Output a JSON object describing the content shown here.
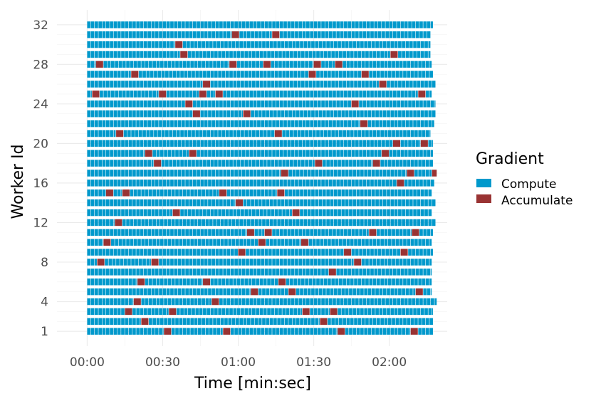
{
  "chart_data": {
    "type": "gantt",
    "xlabel": "Time [min:sec]",
    "ylabel": "Worker Id",
    "legend_title": "Gradient",
    "legend_position": "right",
    "grid": true,
    "xlim_seconds": [
      -12,
      143
    ],
    "x_ticks": [
      {
        "value": 0,
        "label": "00:00"
      },
      {
        "value": 30,
        "label": "00:30"
      },
      {
        "value": 60,
        "label": "01:00"
      },
      {
        "value": 90,
        "label": "01:30"
      },
      {
        "value": 120,
        "label": "02:00"
      }
    ],
    "ylim": [
      -0.5,
      33.5
    ],
    "y_ticks": [
      {
        "value": 1,
        "label": "1"
      },
      {
        "value": 4,
        "label": "4"
      },
      {
        "value": 8,
        "label": "8"
      },
      {
        "value": 12,
        "label": "12"
      },
      {
        "value": 16,
        "label": "16"
      },
      {
        "value": 20,
        "label": "20"
      },
      {
        "value": 24,
        "label": "24"
      },
      {
        "value": 28,
        "label": "28"
      },
      {
        "value": 32,
        "label": "32"
      }
    ],
    "series": [
      {
        "name": "Compute",
        "color": "#0099cc"
      },
      {
        "name": "Accumulate",
        "color": "#993333"
      }
    ],
    "workers": [
      {
        "id": 1,
        "end": 137.5,
        "accumulate": [
          30.5,
          54,
          99.5,
          128.5
        ]
      },
      {
        "id": 2,
        "end": 137.5,
        "accumulate": [
          21.5,
          92.5
        ]
      },
      {
        "id": 3,
        "end": 137.5,
        "accumulate": [
          15,
          32.5,
          85.5,
          96.5
        ]
      },
      {
        "id": 4,
        "end": 139,
        "accumulate": [
          18.5,
          49.5
        ]
      },
      {
        "id": 5,
        "end": 137,
        "accumulate": [
          65,
          80,
          130.5
        ]
      },
      {
        "id": 6,
        "end": 137,
        "accumulate": [
          20,
          46,
          76
        ]
      },
      {
        "id": 7,
        "end": 137,
        "accumulate": [
          96
        ]
      },
      {
        "id": 8,
        "end": 137,
        "accumulate": [
          4,
          25.5,
          106
        ]
      },
      {
        "id": 9,
        "end": 137.5,
        "accumulate": [
          60,
          102,
          124.5
        ]
      },
      {
        "id": 10,
        "end": 137,
        "accumulate": [
          6.5,
          68,
          85
        ]
      },
      {
        "id": 11,
        "end": 137.5,
        "accumulate": [
          63.5,
          70.5,
          112,
          129
        ]
      },
      {
        "id": 12,
        "end": 138.5,
        "accumulate": [
          11
        ]
      },
      {
        "id": 13,
        "end": 137,
        "accumulate": [
          34,
          81.5
        ]
      },
      {
        "id": 14,
        "end": 138.5,
        "accumulate": [
          59
        ]
      },
      {
        "id": 15,
        "end": 137,
        "accumulate": [
          7.5,
          14,
          52.5,
          75.5
        ]
      },
      {
        "id": 16,
        "end": 138,
        "accumulate": [
          123
        ]
      },
      {
        "id": 17,
        "end": 139,
        "accumulate": [
          77,
          127,
          137
        ]
      },
      {
        "id": 18,
        "end": 137.5,
        "accumulate": [
          26.5,
          90.5,
          113.5
        ]
      },
      {
        "id": 19,
        "end": 137.5,
        "accumulate": [
          23,
          40.5,
          117
        ]
      },
      {
        "id": 20,
        "end": 137.5,
        "accumulate": [
          121.5,
          132.5
        ]
      },
      {
        "id": 21,
        "end": 136.5,
        "accumulate": [
          11.5,
          74.5
        ]
      },
      {
        "id": 22,
        "end": 138,
        "accumulate": [
          108.5
        ]
      },
      {
        "id": 23,
        "end": 138.5,
        "accumulate": [
          42,
          62
        ]
      },
      {
        "id": 24,
        "end": 138.5,
        "accumulate": [
          39,
          105
        ]
      },
      {
        "id": 25,
        "end": 137,
        "accumulate": [
          2,
          28.5,
          44.5,
          51,
          131.5
        ]
      },
      {
        "id": 26,
        "end": 138.5,
        "accumulate": [
          46,
          116
        ]
      },
      {
        "id": 27,
        "end": 137.5,
        "accumulate": [
          17.5,
          88,
          109
        ]
      },
      {
        "id": 28,
        "end": 137,
        "accumulate": [
          3.5,
          56.5,
          70,
          90,
          98.5
        ]
      },
      {
        "id": 29,
        "end": 136.5,
        "accumulate": [
          37,
          120.5
        ]
      },
      {
        "id": 30,
        "end": 136.5,
        "accumulate": [
          35
        ]
      },
      {
        "id": 31,
        "end": 136.5,
        "accumulate": [
          57.5,
          73.5
        ]
      },
      {
        "id": 32,
        "end": 137.5,
        "accumulate": []
      }
    ]
  }
}
